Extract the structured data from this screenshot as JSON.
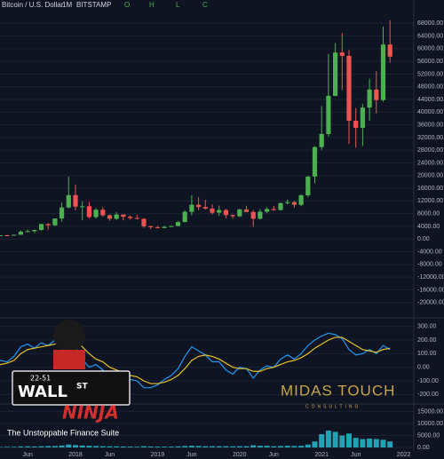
{
  "chart_data": {
    "type": "candlestick",
    "header": {
      "symbol": "Bitcoin / U.S. Dollar",
      "interval": "1M",
      "exchange": "BITSTAMP",
      "o": "O",
      "h": "H",
      "l": "L",
      "c": "C"
    },
    "categories": [
      null,
      null,
      null,
      null,
      null,
      "Jun",
      null,
      null,
      null,
      null,
      null,
      null,
      "2018",
      null,
      null,
      null,
      null,
      "Jun",
      null,
      null,
      null,
      null,
      null,
      null,
      "2019",
      null,
      null,
      null,
      null,
      "Jun",
      null,
      null,
      null,
      null,
      null,
      null,
      "2020",
      null,
      null,
      null,
      null,
      "Jun",
      null,
      null,
      null,
      null,
      null,
      null,
      "2021",
      null,
      null,
      null,
      null,
      "Jun",
      null,
      null,
      null,
      null,
      null
    ],
    "axis_end_label": "2022",
    "up_color": "#4caf50",
    "down_color": "#ef5350",
    "open": [
      963,
      970,
      1190,
      1080,
      1350,
      2300,
      2480,
      2870,
      4730,
      4340,
      6470,
      9950,
      13860,
      10220,
      10330,
      6930,
      9240,
      7500,
      6390,
      7730,
      7030,
      6630,
      6370,
      4040,
      3740,
      3460,
      3820,
      4110,
      5350,
      8570,
      10820,
      10080,
      9600,
      8300,
      9150,
      7550,
      7190,
      9350,
      8520,
      6410,
      8620,
      9450,
      9140,
      11350,
      11650,
      10780,
      13800,
      19700,
      28990,
      33110,
      45140,
      58800,
      57750,
      37300,
      35040,
      41460,
      47130,
      43820,
      61300
    ],
    "high": [
      1190,
      1200,
      1350,
      1350,
      2760,
      3000,
      2920,
      4750,
      5000,
      6470,
      11500,
      19700,
      17200,
      11800,
      11700,
      9750,
      10000,
      7780,
      8500,
      7770,
      7410,
      7680,
      6590,
      4250,
      4140,
      4210,
      4130,
      5620,
      9000,
      13880,
      13200,
      12330,
      10950,
      10540,
      9530,
      7750,
      9580,
      10500,
      9190,
      9470,
      10070,
      10420,
      11440,
      12470,
      12080,
      14100,
      19860,
      29300,
      41950,
      58350,
      61780,
      64900,
      59600,
      41330,
      42600,
      50500,
      52920,
      67000,
      69000
    ],
    "low": [
      750,
      920,
      890,
      1060,
      1350,
      2100,
      1830,
      2670,
      2970,
      4110,
      5500,
      9600,
      9000,
      5900,
      6500,
      6430,
      7040,
      5750,
      6070,
      5880,
      6100,
      6180,
      3550,
      3120,
      3350,
      3400,
      3720,
      4050,
      5330,
      7450,
      9050,
      9340,
      7730,
      7300,
      6500,
      6430,
      6870,
      8450,
      3850,
      6150,
      8110,
      8900,
      8980,
      10970,
      9830,
      10370,
      13200,
      17570,
      28130,
      32300,
      44950,
      47000,
      30000,
      28800,
      29300,
      37300,
      39600,
      43300,
      55600
    ],
    "close": [
      970,
      1190,
      1080,
      1350,
      2300,
      2480,
      2870,
      4730,
      4340,
      6470,
      9950,
      13860,
      10220,
      10330,
      6930,
      9240,
      7500,
      6390,
      7730,
      7030,
      6630,
      6370,
      4040,
      3740,
      3460,
      3820,
      4110,
      5350,
      8570,
      10820,
      10080,
      9600,
      8300,
      9150,
      7550,
      7190,
      9350,
      8520,
      6410,
      8620,
      9450,
      9140,
      11350,
      11650,
      10780,
      13800,
      19700,
      28990,
      33110,
      45140,
      58800,
      57750,
      37300,
      35040,
      41460,
      47130,
      43820,
      61300,
      57500
    ],
    "ylim": [
      -24000,
      72000
    ],
    "yticks": [
      {
        "value": 68000,
        "label": "68000.00"
      },
      {
        "value": 64000,
        "label": "64000.00"
      },
      {
        "value": 60000,
        "label": "60000.00"
      },
      {
        "value": 56000,
        "label": "56000.00"
      },
      {
        "value": 52000,
        "label": "52000.00"
      },
      {
        "value": 48000,
        "label": "48000.00"
      },
      {
        "value": 44000,
        "label": "44000.00"
      },
      {
        "value": 40000,
        "label": "40000.00"
      },
      {
        "value": 36000,
        "label": "36000.00"
      },
      {
        "value": 32000,
        "label": "32000.00"
      },
      {
        "value": 28000,
        "label": "28000.00"
      },
      {
        "value": 24000,
        "label": "24000.00"
      },
      {
        "value": 20000,
        "label": "20000.00"
      },
      {
        "value": 16000,
        "label": "16000.00"
      },
      {
        "value": 12000,
        "label": "12000.00"
      },
      {
        "value": 8000,
        "label": "8000.00"
      },
      {
        "value": 4000,
        "label": "4000.00"
      },
      {
        "value": 0,
        "label": "0.00"
      },
      {
        "value": -4000,
        "label": "-4000.00"
      },
      {
        "value": -8000,
        "label": "-8000.00"
      },
      {
        "value": -12000,
        "label": "-12000.00"
      },
      {
        "value": -16000,
        "label": "-16000.00"
      },
      {
        "value": -20000,
        "label": "-20000.00"
      }
    ],
    "oscillator": {
      "ylim": [
        -250,
        350
      ],
      "yticks": [
        {
          "value": 300,
          "label": "300.00"
        },
        {
          "value": 200,
          "label": "200.00"
        },
        {
          "value": 100,
          "label": "100.00"
        },
        {
          "value": 0,
          "label": "0.00"
        },
        {
          "value": -100,
          "label": "-100.00"
        },
        {
          "value": -200,
          "label": "-200.00"
        }
      ],
      "series": [
        {
          "color": "#2196f3",
          "values": [
            20,
            50,
            40,
            80,
            150,
            170,
            140,
            180,
            160,
            200,
            240,
            250,
            150,
            60,
            0,
            20,
            -20,
            -80,
            -50,
            -80,
            -90,
            -100,
            -150,
            -150,
            -130,
            -90,
            -60,
            -10,
            80,
            150,
            120,
            90,
            40,
            40,
            -20,
            -50,
            0,
            -10,
            -80,
            -20,
            10,
            0,
            60,
            90,
            60,
            100,
            160,
            200,
            230,
            250,
            240,
            210,
            130,
            90,
            100,
            130,
            100,
            160,
            130
          ]
        },
        {
          "color": "#e6c229",
          "values": [
            0,
            20,
            30,
            50,
            100,
            130,
            140,
            150,
            160,
            170,
            200,
            220,
            200,
            150,
            100,
            60,
            40,
            0,
            -20,
            -40,
            -60,
            -70,
            -100,
            -120,
            -120,
            -110,
            -90,
            -60,
            -10,
            50,
            80,
            90,
            80,
            60,
            30,
            0,
            -10,
            -10,
            -30,
            -30,
            -10,
            0,
            20,
            40,
            50,
            70,
            100,
            140,
            170,
            200,
            220,
            220,
            190,
            160,
            130,
            120,
            110,
            130,
            140
          ]
        }
      ]
    },
    "volume": {
      "color": "#26c6da",
      "ylim": [
        0,
        17000
      ],
      "yticks": [
        {
          "value": 15000,
          "label": "15000.00"
        },
        {
          "value": 10000,
          "label": "10000.00"
        },
        {
          "value": 5000,
          "label": "5000.00"
        },
        {
          "value": 0,
          "label": "0.00"
        }
      ],
      "values": [
        200,
        200,
        250,
        250,
        400,
        450,
        400,
        500,
        600,
        600,
        800,
        1200,
        1000,
        800,
        700,
        600,
        500,
        450,
        450,
        400,
        350,
        300,
        500,
        400,
        350,
        350,
        350,
        450,
        600,
        700,
        600,
        500,
        500,
        500,
        500,
        450,
        500,
        500,
        900,
        700,
        700,
        500,
        600,
        700,
        600,
        700,
        1200,
        2500,
        5500,
        7000,
        6500,
        5000,
        5800,
        4000,
        3500,
        3700,
        3500,
        3200,
        2500
      ]
    }
  },
  "overlays": {
    "badge": "22-51",
    "wall": "WALL",
    "st": "ST",
    "ninja": "NINJA",
    "tagline": "The Unstoppable Finance Suite",
    "brand": "MIDAS TOUCH",
    "brand_sub": "CONSULTING"
  }
}
